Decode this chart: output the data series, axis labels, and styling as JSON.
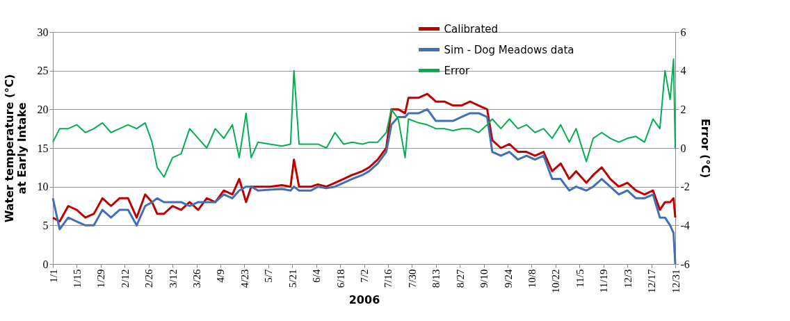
{
  "chart_data": {
    "type": "line",
    "xlabel": "2006",
    "ylabel": "Water temperature (°C) at Early Intake",
    "y2label": "Error (°C)",
    "x": [
      "2006-01-01",
      "2006-01-05",
      "2006-01-10",
      "2006-01-15",
      "2006-01-20",
      "2006-01-25",
      "2006-01-30",
      "2006-02-04",
      "2006-02-09",
      "2006-02-14",
      "2006-02-19",
      "2006-02-24",
      "2006-02-28",
      "2006-03-03",
      "2006-03-07",
      "2006-03-12",
      "2006-03-17",
      "2006-03-22",
      "2006-03-27",
      "2006-04-01",
      "2006-04-06",
      "2006-04-11",
      "2006-04-16",
      "2006-04-20",
      "2006-04-24",
      "2006-04-27",
      "2006-05-01",
      "2006-05-08",
      "2006-05-15",
      "2006-05-20",
      "2006-05-22",
      "2006-05-25",
      "2006-06-01",
      "2006-06-05",
      "2006-06-10",
      "2006-06-15",
      "2006-06-20",
      "2006-06-25",
      "2006-07-01",
      "2006-07-05",
      "2006-07-10",
      "2006-07-15",
      "2006-07-18",
      "2006-07-22",
      "2006-07-26",
      "2006-07-28",
      "2006-08-03",
      "2006-08-08",
      "2006-08-13",
      "2006-08-18",
      "2006-08-23",
      "2006-08-28",
      "2006-09-02",
      "2006-09-07",
      "2006-09-12",
      "2006-09-15",
      "2006-09-20",
      "2006-09-25",
      "2006-09-30",
      "2006-10-05",
      "2006-10-10",
      "2006-10-15",
      "2006-10-20",
      "2006-10-25",
      "2006-10-30",
      "2006-11-03",
      "2006-11-09",
      "2006-11-13",
      "2006-11-18",
      "2006-11-23",
      "2006-11-28",
      "2006-12-03",
      "2006-12-08",
      "2006-12-13",
      "2006-12-18",
      "2006-12-22",
      "2006-12-25",
      "2006-12-28",
      "2006-12-30",
      "2006-12-31"
    ],
    "series": [
      {
        "name": "Calibrated",
        "color": "#c00000",
        "values": [
          6,
          5.5,
          7.5,
          7,
          6,
          6.5,
          8.5,
          7.5,
          8.5,
          8.5,
          6,
          9,
          8,
          6.5,
          6.5,
          7.5,
          7,
          8,
          7,
          8.5,
          8,
          9.5,
          9,
          11,
          8,
          10,
          10,
          10,
          10.2,
          10,
          13.5,
          10,
          10,
          10.3,
          10,
          10.5,
          11,
          11.5,
          12,
          12.5,
          13.5,
          15,
          20,
          20,
          19.5,
          21.5,
          21.5,
          22,
          21,
          21,
          20.5,
          20.5,
          21,
          20.5,
          20,
          16,
          15,
          15.5,
          14.5,
          14.5,
          14,
          14.5,
          12,
          13,
          11,
          12,
          10.5,
          11.5,
          12.5,
          11,
          10,
          10.5,
          9.5,
          9,
          9.5,
          7,
          8,
          8,
          8.5,
          6
        ]
      },
      {
        "name": "Sim - Dog Meadows data",
        "color": "#3f6fb5",
        "values": [
          8.5,
          4.5,
          6,
          5.5,
          5,
          5,
          7,
          6,
          7,
          7,
          5,
          7.5,
          8,
          8.5,
          8,
          8,
          8,
          7.5,
          8,
          8,
          8,
          9,
          8.5,
          9.5,
          10,
          10,
          9.5,
          9.6,
          9.7,
          9.5,
          10,
          9.5,
          9.5,
          10,
          9.8,
          10,
          10.5,
          11,
          11.5,
          12,
          13,
          14.5,
          18,
          19,
          19,
          19.5,
          19.5,
          20,
          18.5,
          18.5,
          18.5,
          19,
          19.5,
          19.5,
          19,
          14.5,
          14,
          14.5,
          13.5,
          14,
          13.5,
          14,
          11,
          11,
          9.5,
          10,
          9.5,
          10,
          11,
          10,
          9,
          9.5,
          8.5,
          8.5,
          9,
          6,
          6,
          5,
          4,
          0
        ]
      },
      {
        "name": "Error",
        "color": "#00b050",
        "axis": "y2",
        "values": [
          0.3,
          1,
          1,
          1.2,
          0.8,
          1,
          1.3,
          0.8,
          1,
          1.2,
          1,
          1.3,
          0.3,
          -1,
          -1.5,
          -0.5,
          -0.3,
          1,
          0.5,
          0,
          1,
          0.5,
          1.2,
          -0.5,
          1.8,
          -0.5,
          0.3,
          0.2,
          0.1,
          0.2,
          4,
          0.2,
          0.2,
          0.2,
          0,
          0.8,
          0.2,
          0.3,
          0.2,
          0.3,
          0.3,
          0.8,
          2,
          1.5,
          -0.5,
          1.5,
          1.3,
          1.2,
          1,
          1,
          0.9,
          1,
          1,
          0.8,
          1.2,
          1.5,
          1,
          1.5,
          1,
          1.2,
          0.8,
          1,
          0.5,
          1.2,
          0.3,
          1,
          -0.7,
          0.5,
          0.8,
          0.5,
          0.3,
          0.5,
          0.6,
          0.3,
          1.5,
          1,
          4,
          2.5,
          4.6,
          0
        ]
      }
    ],
    "xlim": [
      "2006-01-01",
      "2006-12-31"
    ],
    "xticks": [
      {
        "value": "2006-01-01",
        "label": "1/1"
      },
      {
        "value": "2006-01-15",
        "label": "1/15"
      },
      {
        "value": "2006-01-29",
        "label": "1/29"
      },
      {
        "value": "2006-02-12",
        "label": "2/12"
      },
      {
        "value": "2006-02-26",
        "label": "2/26"
      },
      {
        "value": "2006-03-12",
        "label": "3/12"
      },
      {
        "value": "2006-03-26",
        "label": "3/26"
      },
      {
        "value": "2006-04-09",
        "label": "4/9"
      },
      {
        "value": "2006-04-23",
        "label": "4/23"
      },
      {
        "value": "2006-05-07",
        "label": "5/7"
      },
      {
        "value": "2006-05-21",
        "label": "5/21"
      },
      {
        "value": "2006-06-04",
        "label": "6/4"
      },
      {
        "value": "2006-06-18",
        "label": "6/18"
      },
      {
        "value": "2006-07-02",
        "label": "7/2"
      },
      {
        "value": "2006-07-16",
        "label": "7/16"
      },
      {
        "value": "2006-07-30",
        "label": "7/30"
      },
      {
        "value": "2006-08-13",
        "label": "8/13"
      },
      {
        "value": "2006-08-27",
        "label": "8/27"
      },
      {
        "value": "2006-09-10",
        "label": "9/10"
      },
      {
        "value": "2006-09-24",
        "label": "9/24"
      },
      {
        "value": "2006-10-08",
        "label": "10/8"
      },
      {
        "value": "2006-10-22",
        "label": "10/22"
      },
      {
        "value": "2006-11-05",
        "label": "11/5"
      },
      {
        "value": "2006-11-19",
        "label": "11/19"
      },
      {
        "value": "2006-12-03",
        "label": "12/3"
      },
      {
        "value": "2006-12-17",
        "label": "12/17"
      },
      {
        "value": "2006-12-31",
        "label": "12/31"
      }
    ],
    "ylim": [
      0,
      30
    ],
    "yticks": [
      0,
      5,
      10,
      15,
      20,
      25,
      30
    ],
    "y2lim": [
      -6,
      6
    ],
    "y2ticks": [
      -6,
      -4,
      -2,
      0,
      2,
      4,
      6
    ],
    "grid": "y",
    "legend": "top right",
    "marker": "none",
    "line_style": "solid"
  }
}
